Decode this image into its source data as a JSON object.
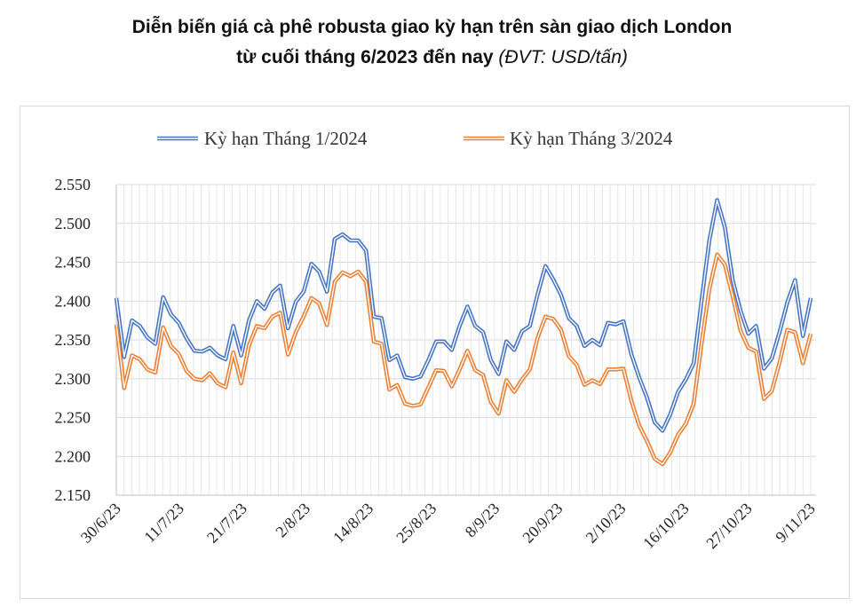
{
  "title": {
    "line1": "Diễn biến giá cà phê robusta giao kỳ hạn trên sàn giao dịch London",
    "line2": "từ cuối tháng 6/2023 đến nay",
    "unit": "(ĐVT: USD/tấn)"
  },
  "chart_data": {
    "type": "line",
    "y_ticks": [
      "2.150",
      "2.200",
      "2.250",
      "2.300",
      "2.350",
      "2.400",
      "2.450",
      "2.500",
      "2.550"
    ],
    "ylim": [
      2150,
      2550
    ],
    "x_tick_labels": [
      "30/6/23",
      "11/7/23",
      "21/7/23",
      "2/8/23",
      "14/8/23",
      "25/8/23",
      "8/9/23",
      "20/9/23",
      "2/10/23",
      "16/10/23",
      "27/10/23",
      "9/11/23"
    ],
    "grid": true,
    "legend_position": "top",
    "series": [
      {
        "name": "Kỳ hạn Tháng 1/2024",
        "color": "#4472c4",
        "values": [
          2404,
          2328,
          2375,
          2368,
          2353,
          2345,
          2405,
          2383,
          2372,
          2352,
          2336,
          2335,
          2340,
          2330,
          2325,
          2368,
          2330,
          2375,
          2400,
          2390,
          2411,
          2420,
          2365,
          2399,
          2412,
          2448,
          2438,
          2412,
          2480,
          2486,
          2478,
          2478,
          2465,
          2380,
          2378,
          2324,
          2330,
          2302,
          2300,
          2303,
          2324,
          2348,
          2348,
          2337,
          2368,
          2393,
          2368,
          2360,
          2324,
          2306,
          2348,
          2337,
          2361,
          2368,
          2409,
          2445,
          2428,
          2408,
          2378,
          2368,
          2342,
          2350,
          2343,
          2372,
          2370,
          2374,
          2332,
          2302,
          2276,
          2244,
          2233,
          2254,
          2283,
          2299,
          2320,
          2400,
          2478,
          2530,
          2495,
          2427,
          2388,
          2358,
          2368,
          2313,
          2326,
          2360,
          2398,
          2427,
          2355,
          2404
        ]
      },
      {
        "name": "Kỳ hạn Tháng 3/2024",
        "color": "#ed7d31",
        "values": [
          2370,
          2288,
          2330,
          2325,
          2312,
          2308,
          2366,
          2342,
          2332,
          2310,
          2300,
          2298,
          2307,
          2294,
          2289,
          2334,
          2294,
          2343,
          2368,
          2365,
          2380,
          2385,
          2331,
          2360,
          2380,
          2404,
          2397,
          2369,
          2425,
          2437,
          2432,
          2438,
          2425,
          2348,
          2345,
          2286,
          2292,
          2268,
          2265,
          2267,
          2289,
          2311,
          2310,
          2290,
          2312,
          2336,
          2311,
          2305,
          2270,
          2255,
          2298,
          2283,
          2299,
          2312,
          2353,
          2380,
          2377,
          2363,
          2329,
          2318,
          2292,
          2298,
          2293,
          2312,
          2312,
          2313,
          2272,
          2240,
          2220,
          2197,
          2190,
          2205,
          2228,
          2242,
          2268,
          2345,
          2415,
          2460,
          2447,
          2406,
          2362,
          2340,
          2335,
          2274,
          2284,
          2321,
          2363,
          2360,
          2320,
          2358
        ]
      }
    ]
  }
}
